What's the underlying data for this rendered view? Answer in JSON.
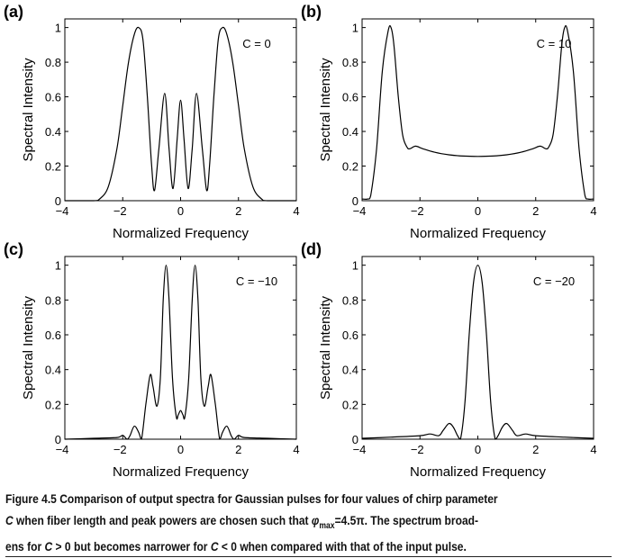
{
  "chart_data": [
    {
      "type": "line",
      "panel_label": "(a)",
      "annotation": "C = 0",
      "xlabel": "Normalized Frequency",
      "ylabel": "Spectral Intensity",
      "xlim": [
        -4,
        4
      ],
      "ylim": [
        0,
        1.05
      ],
      "xticks": [
        "−4",
        "−2",
        "0",
        "2",
        "4"
      ],
      "yticks": [
        "0",
        "0.2",
        "0.4",
        "0.6",
        "0.8",
        "1"
      ],
      "grid": false,
      "x": [
        -4,
        -3,
        -2.8,
        -2.5,
        -2.2,
        -2,
        -1.8,
        -1.6,
        -1.45,
        -1.3,
        -1.15,
        -1.0,
        -0.9,
        -0.75,
        -0.55,
        -0.4,
        -0.26,
        -0.12,
        0,
        0.12,
        0.26,
        0.4,
        0.55,
        0.75,
        0.9,
        1.0,
        1.15,
        1.3,
        1.45,
        1.6,
        1.8,
        2,
        2.2,
        2.5,
        2.8,
        3,
        4
      ],
      "y": [
        0,
        0,
        0.01,
        0.08,
        0.3,
        0.55,
        0.8,
        0.96,
        1.0,
        0.93,
        0.6,
        0.2,
        0.06,
        0.3,
        0.62,
        0.3,
        0.07,
        0.35,
        0.58,
        0.35,
        0.07,
        0.3,
        0.62,
        0.3,
        0.06,
        0.2,
        0.6,
        0.93,
        1.0,
        0.96,
        0.8,
        0.55,
        0.3,
        0.08,
        0.01,
        0,
        0
      ]
    },
    {
      "type": "line",
      "panel_label": "(b)",
      "annotation": "C = 10",
      "xlabel": "Normalized Frequency",
      "ylabel": "Spectral Intensity",
      "xlim": [
        -4,
        4
      ],
      "ylim": [
        0,
        1.05
      ],
      "xticks": [
        "−4",
        "−2",
        "0",
        "2",
        "4"
      ],
      "yticks": [
        "0",
        "0.2",
        "0.4",
        "0.6",
        "0.8",
        "1"
      ],
      "grid": false,
      "x": [
        -4,
        -3.8,
        -3.7,
        -3.5,
        -3.3,
        -3.1,
        -3.0,
        -2.9,
        -2.75,
        -2.6,
        -2.45,
        -2.35,
        -2.15,
        -1.9,
        -1.5,
        -1,
        -0.5,
        0,
        0.5,
        1,
        1.5,
        1.9,
        2.15,
        2.35,
        2.45,
        2.6,
        2.75,
        2.9,
        3.0,
        3.1,
        3.3,
        3.5,
        3.7,
        3.8,
        4
      ],
      "y": [
        0.01,
        0.01,
        0.03,
        0.3,
        0.75,
        0.98,
        1.0,
        0.9,
        0.6,
        0.38,
        0.31,
        0.3,
        0.315,
        0.3,
        0.28,
        0.265,
        0.258,
        0.256,
        0.258,
        0.265,
        0.28,
        0.3,
        0.315,
        0.3,
        0.31,
        0.38,
        0.6,
        0.9,
        1.0,
        0.98,
        0.75,
        0.3,
        0.03,
        0.01,
        0.01
      ]
    },
    {
      "type": "line",
      "panel_label": "(c)",
      "annotation": "C = −10",
      "xlabel": "Normalized Frequency",
      "ylabel": "Spectral Intensity",
      "xlim": [
        -4,
        4
      ],
      "ylim": [
        0,
        1.05
      ],
      "xticks": [
        "−4",
        "−2",
        "0",
        "2",
        "4"
      ],
      "yticks": [
        "0",
        "0.2",
        "0.4",
        "0.6",
        "0.8",
        "1"
      ],
      "grid": false,
      "x": [
        -4,
        -3,
        -2.2,
        -2.0,
        -1.85,
        -1.75,
        -1.6,
        -1.45,
        -1.35,
        -1.2,
        -1.05,
        -0.95,
        -0.82,
        -0.7,
        -0.6,
        -0.5,
        -0.4,
        -0.28,
        -0.15,
        -0.08,
        0,
        0.08,
        0.15,
        0.28,
        0.4,
        0.5,
        0.6,
        0.7,
        0.82,
        0.95,
        1.05,
        1.2,
        1.35,
        1.45,
        1.6,
        1.75,
        1.85,
        2.0,
        2.2,
        3,
        4
      ],
      "y": [
        0,
        0.005,
        0.01,
        0.022,
        0.0,
        0.02,
        0.075,
        0.04,
        0,
        0.2,
        0.37,
        0.3,
        0.19,
        0.35,
        0.8,
        1.0,
        0.8,
        0.35,
        0.13,
        0.14,
        0.165,
        0.14,
        0.13,
        0.35,
        0.8,
        1.0,
        0.8,
        0.35,
        0.19,
        0.3,
        0.37,
        0.2,
        0,
        0.04,
        0.075,
        0.02,
        0.0,
        0.022,
        0.01,
        0.005,
        0
      ]
    },
    {
      "type": "line",
      "panel_label": "(d)",
      "annotation": "C = −20",
      "xlabel": "Normalized Frequency",
      "ylabel": "Spectral Intensity",
      "xlim": [
        -4,
        4
      ],
      "ylim": [
        0,
        1.05
      ],
      "xticks": [
        "−4",
        "−2",
        "0",
        "2",
        "4"
      ],
      "yticks": [
        "0",
        "0.2",
        "0.4",
        "0.6",
        "0.8",
        "1"
      ],
      "grid": false,
      "x": [
        -4,
        -3,
        -2,
        -1.65,
        -1.35,
        -1.2,
        -1.0,
        -0.85,
        -0.7,
        -0.6,
        -0.45,
        -0.3,
        -0.15,
        0,
        0.15,
        0.3,
        0.45,
        0.6,
        0.7,
        0.85,
        1.0,
        1.2,
        1.35,
        1.65,
        2,
        3,
        4
      ],
      "y": [
        0.005,
        0.012,
        0.02,
        0.03,
        0.02,
        0.05,
        0.09,
        0.07,
        0.02,
        0,
        0.2,
        0.6,
        0.9,
        1.0,
        0.9,
        0.6,
        0.2,
        0,
        0.02,
        0.07,
        0.09,
        0.05,
        0.02,
        0.03,
        0.02,
        0.012,
        0.005
      ]
    }
  ],
  "caption": {
    "line1": "Figure 4.5  Comparison of output spectra for Gaussian pulses for four values of chirp parameter",
    "line2_c": "C",
    "line2_rest": " when fiber length and peak powers are chosen such that ",
    "line2_phi": "φ",
    "line2_sub": "max",
    "line2_eq": "=4.5π. The spectrum broad-",
    "line3_a": "ens for ",
    "line3_c1": "C",
    "line3_b": " > 0 but becomes narrower for ",
    "line3_c2": "C",
    "line3_c": " < 0 when compared with that of the input pulse."
  }
}
